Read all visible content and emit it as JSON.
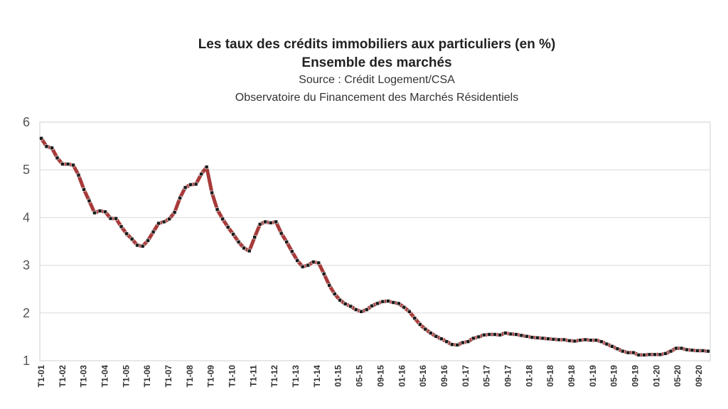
{
  "chart_data": {
    "type": "line",
    "title": "Les taux des crédits immobiliers aux particuliers (en %)",
    "subtitle": "Ensemble des marchés",
    "source": "Source : Crédit Logement/CSA",
    "observatory": "Observatoire du Financement des Marchés Résidentiels",
    "xlabel": "",
    "ylabel": "",
    "ylim": [
      1,
      6
    ],
    "yticks": [
      "1",
      "2",
      "3",
      "4",
      "5",
      "6"
    ],
    "grid": true,
    "legend": "none",
    "colors": {
      "line": "#a83a3a",
      "marker": "#1a1a1a",
      "grid": "#d9d9d9"
    },
    "x_tick_labels": [
      "T1-01",
      "T1-02",
      "T1-03",
      "T1-04",
      "T1-05",
      "T1-06",
      "T1-07",
      "T1-08",
      "T1-09",
      "T1-10",
      "T1-11",
      "T1-12",
      "T1-13",
      "T1-14",
      "01-15",
      "05-15",
      "09-15",
      "01-16",
      "05-16",
      "09-16",
      "01-17",
      "05-17",
      "09-17",
      "01-18",
      "05-18",
      "09-18",
      "01-19",
      "05-19",
      "09-19",
      "01-20",
      "05-20",
      "09-20"
    ],
    "series": [
      {
        "values": [
          5.66,
          5.49,
          5.46,
          5.25,
          5.12,
          5.12,
          5.1,
          4.89,
          4.59,
          4.35,
          4.1,
          4.14,
          4.12,
          3.98,
          3.98,
          3.81,
          3.66,
          3.55,
          3.42,
          3.4,
          3.52,
          3.7,
          3.88,
          3.91,
          3.97,
          4.11,
          4.41,
          4.63,
          4.69,
          4.7,
          4.91,
          5.06,
          4.52,
          4.17,
          3.97,
          3.8,
          3.65,
          3.49,
          3.36,
          3.3,
          3.59,
          3.86,
          3.91,
          3.89,
          3.91,
          3.67,
          3.49,
          3.29,
          3.1,
          2.97,
          3.0,
          3.07,
          3.05,
          2.82,
          2.58,
          2.4,
          2.27,
          2.19,
          2.14,
          2.07,
          2.03,
          2.07,
          2.15,
          2.2,
          2.24,
          2.25,
          2.22,
          2.2,
          2.12,
          2.03,
          1.89,
          1.76,
          1.66,
          1.58,
          1.51,
          1.46,
          1.4,
          1.34,
          1.33,
          1.38,
          1.4,
          1.47,
          1.5,
          1.54,
          1.55,
          1.55,
          1.54,
          1.58,
          1.56,
          1.55,
          1.53,
          1.51,
          1.49,
          1.48,
          1.47,
          1.46,
          1.45,
          1.44,
          1.44,
          1.42,
          1.41,
          1.43,
          1.44,
          1.43,
          1.43,
          1.4,
          1.35,
          1.3,
          1.25,
          1.2,
          1.17,
          1.17,
          1.12,
          1.12,
          1.13,
          1.13,
          1.13,
          1.15,
          1.2,
          1.26,
          1.26,
          1.23,
          1.22,
          1.21,
          1.21,
          1.2
        ]
      }
    ]
  }
}
